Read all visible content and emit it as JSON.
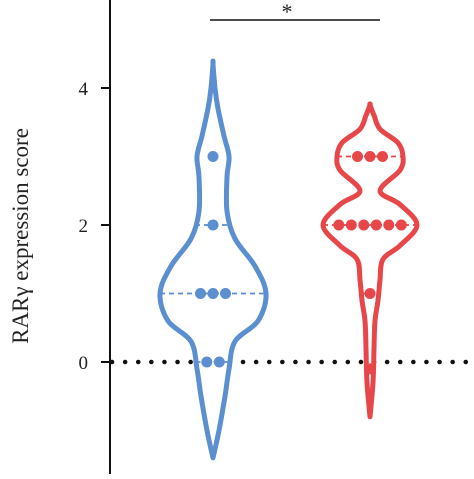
{
  "chart_data": {
    "type": "violin",
    "ylabel": "RARγ expression score",
    "yticks": [
      0,
      2,
      4
    ],
    "ylim": [
      -1.6,
      5.2
    ],
    "zero_reference_line": "dotted",
    "significance": {
      "label": "*",
      "between": [
        0,
        1
      ]
    },
    "series": [
      {
        "color": "#5b8fcf",
        "values": [
          0,
          0,
          1,
          1,
          1,
          2,
          3
        ],
        "quartiles": [
          0,
          1,
          2
        ],
        "extent": [
          -1.4,
          4.35
        ],
        "density": [
          [
            -1.4,
            0.0
          ],
          [
            -1.0,
            0.06
          ],
          [
            -0.5,
            0.12
          ],
          [
            -0.1,
            0.16
          ],
          [
            0.3,
            0.22
          ],
          [
            0.6,
            0.45
          ],
          [
            1.0,
            0.53
          ],
          [
            1.4,
            0.42
          ],
          [
            1.8,
            0.22
          ],
          [
            2.2,
            0.14
          ],
          [
            2.7,
            0.14
          ],
          [
            3.0,
            0.16
          ],
          [
            3.3,
            0.11
          ],
          [
            3.7,
            0.05
          ],
          [
            4.0,
            0.02
          ],
          [
            4.35,
            0.0
          ]
        ]
      },
      {
        "color": "#e8474a",
        "values": [
          -0.1,
          1,
          2,
          2,
          2,
          2,
          2,
          2,
          3,
          3,
          3
        ],
        "quartiles": [
          1,
          2,
          3
        ],
        "extent": [
          -0.8,
          3.75
        ],
        "density": [
          [
            -0.8,
            0.0
          ],
          [
            -0.3,
            0.03
          ],
          [
            0.2,
            0.04
          ],
          [
            0.6,
            0.05
          ],
          [
            0.9,
            0.08
          ],
          [
            1.2,
            0.1
          ],
          [
            1.5,
            0.13
          ],
          [
            1.7,
            0.3
          ],
          [
            2.0,
            0.47
          ],
          [
            2.3,
            0.3
          ],
          [
            2.5,
            0.1
          ],
          [
            2.8,
            0.3
          ],
          [
            3.0,
            0.33
          ],
          [
            3.2,
            0.28
          ],
          [
            3.4,
            0.1
          ],
          [
            3.6,
            0.04
          ],
          [
            3.75,
            0.0
          ]
        ]
      }
    ]
  }
}
